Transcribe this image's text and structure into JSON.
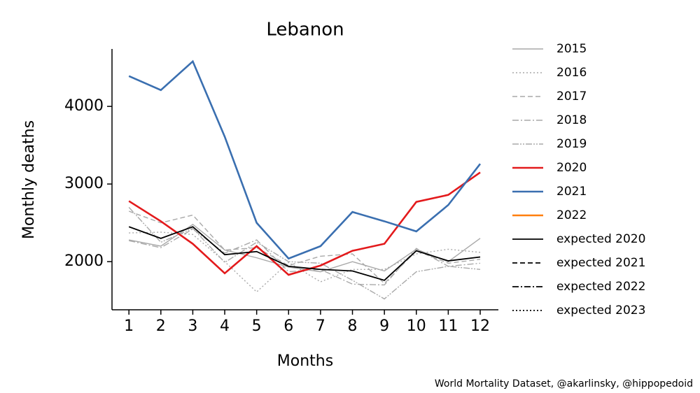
{
  "chart_data": {
    "type": "line",
    "title": "Lebanon",
    "xlabel": "Months",
    "ylabel": "Monthly deaths",
    "source": "World Mortality Dataset, @akarlinsky, @hippopedoid",
    "x": [
      1,
      2,
      3,
      4,
      5,
      6,
      7,
      8,
      9,
      10,
      11,
      12
    ],
    "xlim": [
      0.47,
      12.57
    ],
    "xticks": [
      1,
      2,
      3,
      4,
      5,
      6,
      7,
      8,
      9,
      10,
      11,
      12
    ],
    "ylim": [
      1380,
      4740
    ],
    "yticks": [
      2000,
      3000,
      4000
    ],
    "legend": "outside right",
    "series": [
      {
        "name": "2015",
        "color": "#a9a9a9",
        "linestyle": "solid",
        "values": [
          2280,
          2200,
          2480,
          2150,
          2050,
          1930,
          1870,
          2000,
          1880,
          2160,
          2000,
          2300
        ]
      },
      {
        "name": "2016",
        "color": "#a9a9a9",
        "linestyle": "dotted",
        "values": [
          2370,
          2380,
          2350,
          2000,
          1610,
          1990,
          1740,
          1900,
          1900,
          2100,
          2160,
          2120
        ]
      },
      {
        "name": "2017",
        "color": "#a9a9a9",
        "linestyle": "dashed",
        "values": [
          2650,
          2500,
          2600,
          2150,
          2180,
          1950,
          2070,
          2100,
          1720,
          2140,
          1980,
          2030
        ]
      },
      {
        "name": "2018",
        "color": "#a9a9a9",
        "linestyle": "dashdot",
        "values": [
          2270,
          2180,
          2420,
          2110,
          2280,
          1870,
          1900,
          1710,
          1700,
          2170,
          1940,
          1980
        ]
      },
      {
        "name": "2019",
        "color": "#a9a9a9",
        "linestyle": "dashdotdot",
        "values": [
          2700,
          2250,
          2430,
          1990,
          2250,
          2000,
          1980,
          1760,
          1520,
          1870,
          1940,
          1900
        ]
      },
      {
        "name": "2020",
        "color": "#e31a1c",
        "linestyle": "solid",
        "values": [
          2780,
          2520,
          2230,
          1850,
          2200,
          1830,
          1950,
          2140,
          2230,
          2770,
          2860,
          3150
        ]
      },
      {
        "name": "2021",
        "color": "#3a6fb0",
        "linestyle": "solid",
        "values": [
          4390,
          4210,
          4580,
          3610,
          2500,
          2040,
          2200,
          2640,
          2520,
          2390,
          2730,
          3260
        ]
      },
      {
        "name": "2022",
        "color": "#ff7f0e",
        "linestyle": "solid",
        "values": [
          null,
          null,
          null,
          null,
          null,
          null,
          null,
          null,
          null,
          null,
          null,
          null
        ]
      },
      {
        "name": "expected 2020",
        "color": "#000000",
        "linestyle": "solid",
        "values": [
          2450,
          2300,
          2450,
          2090,
          2130,
          1940,
          1900,
          1880,
          1760,
          2140,
          2010,
          2060
        ]
      },
      {
        "name": "expected 2021",
        "color": "#000000",
        "linestyle": "dashed",
        "values": [
          null,
          null,
          null,
          null,
          null,
          null,
          null,
          null,
          null,
          null,
          null,
          null
        ]
      },
      {
        "name": "expected 2022",
        "color": "#000000",
        "linestyle": "dashdot",
        "values": [
          null,
          null,
          null,
          null,
          null,
          null,
          null,
          null,
          null,
          null,
          null,
          null
        ]
      },
      {
        "name": "expected 2023",
        "color": "#000000",
        "linestyle": "dotted",
        "values": [
          null,
          null,
          null,
          null,
          null,
          null,
          null,
          null,
          null,
          null,
          null,
          null
        ]
      }
    ]
  }
}
